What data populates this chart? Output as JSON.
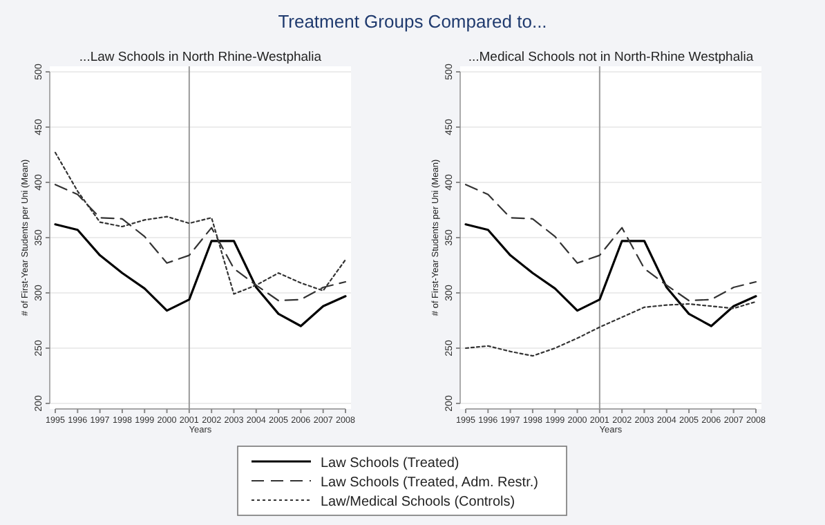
{
  "chart_data": [
    {
      "type": "line",
      "title": "Treatment Groups Compared to...",
      "subtitle": "...Law Schools in North Rhine-Westphalia",
      "xlabel": "Years",
      "ylabel": "# of First-Year Students per Uni (Mean)",
      "x": [
        1995,
        1996,
        1997,
        1998,
        1999,
        2000,
        2001,
        2002,
        2003,
        2004,
        2005,
        2006,
        2007,
        2008
      ],
      "xlim": [
        1995,
        2008
      ],
      "xticks": [
        1995,
        1996,
        1997,
        1998,
        1999,
        2000,
        2001,
        2002,
        2003,
        2004,
        2005,
        2006,
        2007,
        2008
      ],
      "ylim": [
        200,
        500
      ],
      "yticks": [
        200,
        250,
        300,
        350,
        400,
        450,
        500
      ],
      "grid": "y",
      "legend": "bottom",
      "ref_lines": [
        {
          "axis": "x",
          "value": 2001,
          "color": "#999999"
        }
      ],
      "series": [
        {
          "name": "Law Schools (Treated)",
          "color": "#000000",
          "line_style": "solid",
          "values": [
            362,
            357,
            334,
            318,
            304,
            284,
            294,
            347,
            347,
            305,
            281,
            270,
            288,
            297
          ]
        },
        {
          "name": "Law Schools (Treated, Adm. Restr.)",
          "color": "#333333",
          "line_style": "dashed",
          "values": [
            398,
            389,
            368,
            367,
            351,
            327,
            334,
            359,
            322,
            307,
            293,
            294,
            305,
            310
          ]
        },
        {
          "name": "Law/Medical Schools (Controls)",
          "color": "#333333",
          "line_style": "dotted",
          "values": [
            427,
            392,
            364,
            360,
            366,
            369,
            363,
            368,
            299,
            307,
            318,
            309,
            302,
            330
          ]
        }
      ]
    },
    {
      "type": "line",
      "subtitle": "...Medical Schools not in North-Rhine Westphalia",
      "xlabel": "Years",
      "ylabel": "# of First-Year Students per Uni (Mean)",
      "x": [
        1995,
        1996,
        1997,
        1998,
        1999,
        2000,
        2001,
        2002,
        2003,
        2004,
        2005,
        2006,
        2007,
        2008
      ],
      "xlim": [
        1995,
        2008
      ],
      "xticks": [
        1995,
        1996,
        1997,
        1998,
        1999,
        2000,
        2001,
        2002,
        2003,
        2004,
        2005,
        2006,
        2007,
        2008
      ],
      "ylim": [
        200,
        500
      ],
      "yticks": [
        200,
        250,
        300,
        350,
        400,
        450,
        500
      ],
      "grid": "y",
      "ref_lines": [
        {
          "axis": "x",
          "value": 2001,
          "color": "#999999"
        }
      ],
      "series": [
        {
          "color": "#000000",
          "line_style": "solid",
          "values": [
            362,
            357,
            334,
            318,
            304,
            284,
            294,
            347,
            347,
            305,
            281,
            270,
            288,
            297
          ]
        },
        {
          "color": "#333333",
          "line_style": "dashed",
          "values": [
            398,
            389,
            368,
            367,
            351,
            327,
            334,
            359,
            322,
            307,
            293,
            294,
            305,
            310
          ]
        },
        {
          "color": "#333333",
          "line_style": "dotted",
          "values": [
            250,
            252,
            247,
            243,
            250,
            259,
            269,
            278,
            287,
            289,
            290,
            288,
            286,
            292
          ]
        }
      ]
    }
  ]
}
